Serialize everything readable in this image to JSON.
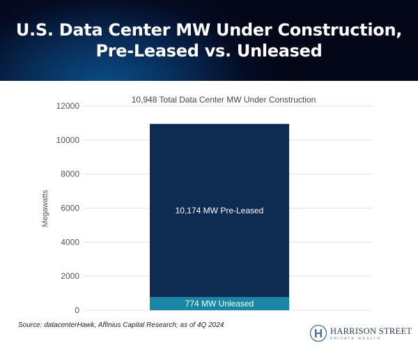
{
  "header": {
    "title_line1": "U.S. Data Center MW Under Construction,",
    "title_line2": "Pre-Leased vs. Unleased"
  },
  "chart_data": {
    "type": "bar",
    "stacked": true,
    "title": "10,948 Total Data Center MW Under Construction",
    "xlabel": "",
    "ylabel": "Megawatts",
    "ylim": [
      0,
      12000
    ],
    "yticks": [
      0,
      2000,
      4000,
      6000,
      8000,
      10000,
      12000
    ],
    "grid": true,
    "series": [
      {
        "name": "Unleased",
        "value": 774,
        "label": "774 MW Unleased",
        "color": "#1a86a6"
      },
      {
        "name": "Pre-Leased",
        "value": 10174,
        "label": "10,174 MW Pre-Leased",
        "color": "#0e2b52"
      }
    ]
  },
  "footer": {
    "source": "Source: datacenterHawk, Affinius Capital Research; as of 4Q 2024",
    "logo_name": "HARRISON STREET",
    "logo_sub": "PRIVATE WEALTH"
  }
}
